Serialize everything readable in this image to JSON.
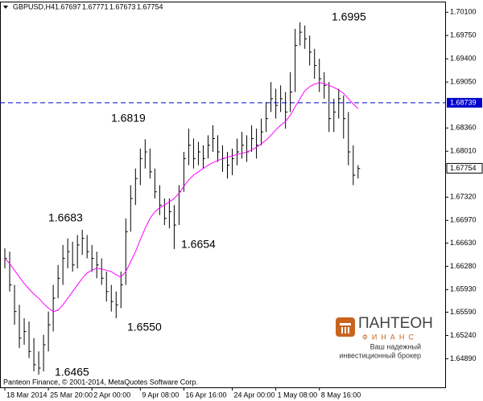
{
  "chart_data": {
    "type": "ohlc",
    "title": "GBPUSD,H4",
    "header_values": [
      1.67697,
      1.67771,
      1.67673,
      1.67754
    ],
    "x": [
      0,
      1,
      2,
      3,
      4,
      5,
      6,
      7,
      8,
      9,
      10,
      11,
      12,
      13,
      14,
      15,
      16,
      17,
      18,
      19,
      20,
      21,
      22,
      23,
      24,
      25,
      26,
      27,
      28,
      29,
      30,
      31,
      32,
      33,
      34,
      35,
      36,
      37,
      38,
      39,
      40,
      41,
      42,
      43,
      44,
      45,
      46,
      47,
      48,
      49,
      50,
      51,
      52,
      53,
      54,
      55,
      56,
      57,
      58,
      59,
      60,
      61,
      62,
      63,
      64,
      65,
      66,
      67,
      68,
      69,
      70,
      71,
      72,
      73
    ],
    "high": [
      1.6655,
      1.665,
      1.66,
      1.657,
      1.655,
      1.6545,
      1.652,
      1.65,
      1.6525,
      1.656,
      1.66,
      1.663,
      1.666,
      1.667,
      1.6665,
      1.6675,
      1.6683,
      1.6675,
      1.666,
      1.665,
      1.664,
      1.662,
      1.66,
      1.659,
      1.662,
      1.67,
      1.675,
      1.6775,
      1.6805,
      1.6819,
      1.6805,
      1.6775,
      1.675,
      1.673,
      1.673,
      1.672,
      1.675,
      1.68,
      1.6835,
      1.682,
      1.6815,
      1.681,
      1.6825,
      1.684,
      1.6825,
      1.681,
      1.68,
      1.6805,
      1.682,
      1.683,
      1.6825,
      1.684,
      1.6835,
      1.685,
      1.6875,
      1.6905,
      1.6895,
      1.69,
      1.689,
      1.692,
      1.6985,
      1.6995,
      1.699,
      1.6975,
      1.6955,
      1.694,
      1.692,
      1.6905,
      1.688,
      1.6895,
      1.6885,
      1.686,
      1.681,
      1.678
    ],
    "low": [
      1.6625,
      1.659,
      1.654,
      1.6505,
      1.651,
      1.649,
      1.647,
      1.6465,
      1.647,
      1.65,
      1.653,
      1.658,
      1.66,
      1.6625,
      1.662,
      1.6625,
      1.6645,
      1.664,
      1.662,
      1.661,
      1.66,
      1.6575,
      1.656,
      1.655,
      1.6565,
      1.66,
      1.668,
      1.672,
      1.675,
      1.6775,
      1.676,
      1.673,
      1.6705,
      1.669,
      1.6685,
      1.6654,
      1.669,
      1.674,
      1.678,
      1.6775,
      1.678,
      1.6775,
      1.679,
      1.68,
      1.6785,
      1.677,
      1.676,
      1.6765,
      1.678,
      1.679,
      1.6785,
      1.68,
      1.679,
      1.681,
      1.683,
      1.686,
      1.685,
      1.686,
      1.6835,
      1.686,
      1.689,
      1.696,
      1.6955,
      1.693,
      1.691,
      1.689,
      1.688,
      1.683,
      1.683,
      1.685,
      1.682,
      1.678,
      1.675,
      1.676
    ],
    "close": [
      1.664,
      1.66,
      1.656,
      1.652,
      1.653,
      1.65,
      1.648,
      1.6475,
      1.651,
      1.654,
      1.658,
      1.661,
      1.664,
      1.665,
      1.663,
      1.666,
      1.667,
      1.665,
      1.664,
      1.663,
      1.661,
      1.659,
      1.6575,
      1.657,
      1.66,
      1.668,
      1.673,
      1.676,
      1.679,
      1.68,
      1.677,
      1.674,
      1.672,
      1.67,
      1.671,
      1.669,
      1.674,
      1.679,
      1.681,
      1.679,
      1.68,
      1.679,
      1.681,
      1.682,
      1.68,
      1.679,
      1.678,
      1.679,
      1.68,
      1.681,
      1.68,
      1.682,
      1.681,
      1.683,
      1.685,
      1.688,
      1.687,
      1.688,
      1.686,
      1.689,
      1.696,
      1.698,
      1.697,
      1.695,
      1.693,
      1.691,
      1.69,
      1.685,
      1.686,
      1.688,
      1.685,
      1.68,
      1.6765,
      1.6775
    ],
    "color": "#000000",
    "ma": {
      "color": "#ff00ff",
      "values": [
        1.664,
        1.6632,
        1.6622,
        1.6612,
        1.6602,
        1.6594,
        1.6586,
        1.658,
        1.6572,
        1.6565,
        1.656,
        1.6562,
        1.657,
        1.658,
        1.659,
        1.66,
        1.661,
        1.6618,
        1.6622,
        1.6625,
        1.6624,
        1.6622,
        1.662,
        1.6615,
        1.6612,
        1.662,
        1.6635,
        1.665,
        1.6668,
        1.6685,
        1.67,
        1.671,
        1.6716,
        1.672,
        1.6725,
        1.673,
        1.6738,
        1.6748,
        1.6758,
        1.6765,
        1.677,
        1.6775,
        1.678,
        1.6784,
        1.6787,
        1.679,
        1.6792,
        1.6794,
        1.6796,
        1.6798,
        1.68,
        1.6803,
        1.6807,
        1.6812,
        1.6818,
        1.6825,
        1.6833,
        1.684,
        1.6846,
        1.6855,
        1.6868,
        1.688,
        1.6892,
        1.6898,
        1.6902,
        1.6904,
        1.6903,
        1.69,
        1.6897,
        1.6893,
        1.6888,
        1.688,
        1.6872,
        1.6865
      ]
    },
    "price_line": {
      "value": 1.68739,
      "color": "#0000cc"
    },
    "last_price": 1.67754,
    "xlim": [
      -1,
      91
    ],
    "ylim": [
      1.6446,
      1.7026
    ],
    "yticks": [
      {
        "value": 1.701,
        "label": "1.70100"
      },
      {
        "value": 1.6975,
        "label": "1.69750"
      },
      {
        "value": 1.694,
        "label": "1.69400"
      },
      {
        "value": 1.6905,
        "label": "1.69050"
      },
      {
        "value": 1.6836,
        "label": "1.68360"
      },
      {
        "value": 1.6801,
        "label": "1.68010"
      },
      {
        "value": 1.6732,
        "label": "1.67320"
      },
      {
        "value": 1.6697,
        "label": "1.66970"
      },
      {
        "value": 1.6663,
        "label": "1.66630"
      },
      {
        "value": 1.6628,
        "label": "1.66280"
      },
      {
        "value": 1.6593,
        "label": "1.65930"
      },
      {
        "value": 1.6559,
        "label": "1.65590"
      },
      {
        "value": 1.6524,
        "label": "1.65240"
      },
      {
        "value": 1.6489,
        "label": "1.64890"
      }
    ],
    "xticks": [
      {
        "value": 0,
        "label": "18 Mar 2014"
      },
      {
        "value": 9,
        "label": "25 Mar 20:00"
      },
      {
        "value": 18,
        "label": "2 Apr 00:00"
      },
      {
        "value": 28,
        "label": "9 Apr 08:00"
      },
      {
        "value": 37,
        "label": "16 Apr 16:00"
      },
      {
        "value": 47,
        "label": "24 Apr 00:00"
      },
      {
        "value": 56,
        "label": "1 May 08:00"
      },
      {
        "value": 65,
        "label": "8 May 16:00"
      }
    ],
    "annotations": [
      "1.6995",
      "1.6819",
      "1.6683",
      "1.6654",
      "1.6550",
      "1.6465"
    ],
    "copyright": "Panteon Finance, © 2001-2014, MetaQuotes Software Corp."
  },
  "branding": {
    "name": "ПАНТЕОН",
    "sub": "ФИНАНС",
    "slogan": [
      "Ваш надежный",
      "инвестиционный брокер"
    ]
  }
}
